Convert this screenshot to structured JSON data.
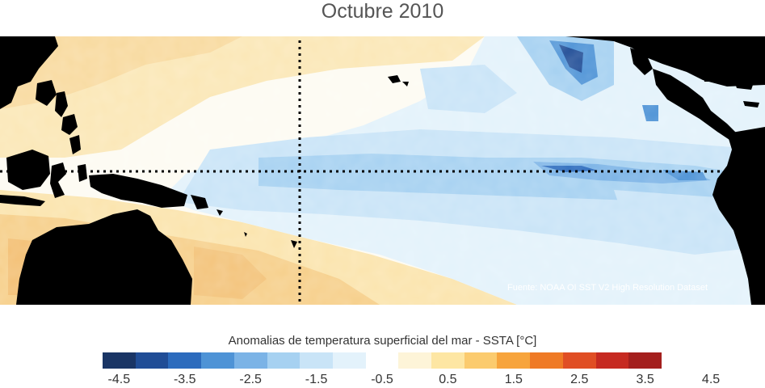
{
  "title": "Octubre 2010",
  "source": "Fuente: NOAA OI SST V2 High Resolution Dataset",
  "colorbar": {
    "title": "Anomalias de temperatura superficial del mar - SSTA  [°C]",
    "colors": [
      "#1a3565",
      "#204d96",
      "#2c6bbd",
      "#4e93d6",
      "#7bb3e6",
      "#a6d1f1",
      "#c9e4f7",
      "#e3f2fb",
      "#ffffff",
      "#fdf4d8",
      "#fde6a3",
      "#fbcb6e",
      "#f7a43c",
      "#ef7a25",
      "#e04e24",
      "#c62a21",
      "#a41f1d"
    ],
    "ticks": [
      "-4.5",
      "-3.5",
      "-2.5",
      "-1.5",
      "-0.5",
      "0.5",
      "1.5",
      "2.5",
      "3.5",
      "4.5"
    ]
  },
  "map": {
    "land_color": "#000000"
  }
}
